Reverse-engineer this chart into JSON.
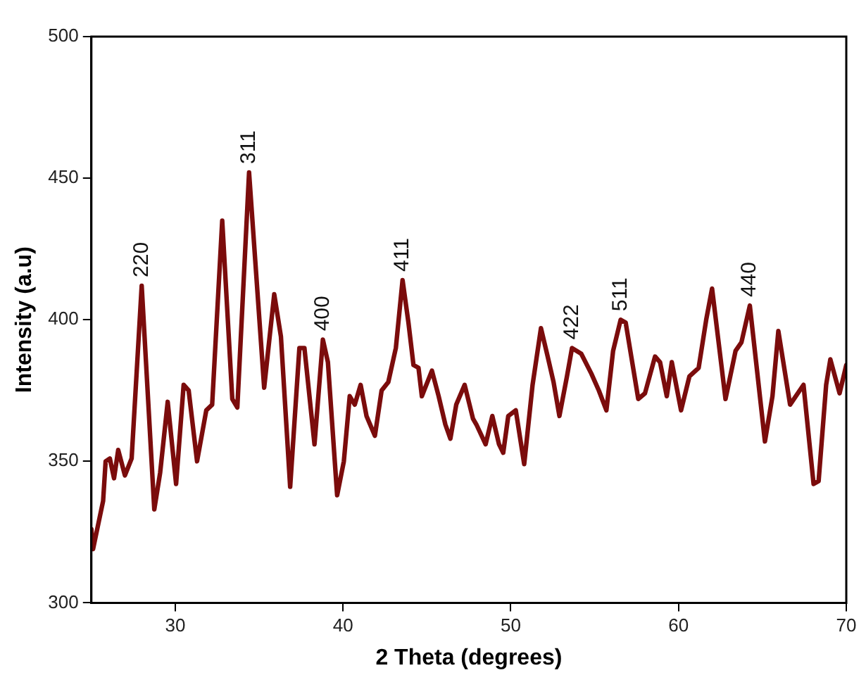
{
  "chart_data": {
    "type": "line",
    "xlabel": "2 Theta (degrees)",
    "ylabel": "Intensity (a.u)",
    "xlim": [
      25,
      70
    ],
    "xticks": [
      30,
      40,
      50,
      60,
      70
    ],
    "ylim": [
      300,
      500
    ],
    "yticks": [
      300,
      350,
      400,
      450,
      500
    ],
    "grid": false,
    "legend": false,
    "marker": "none",
    "line_style": "solid",
    "series": [
      {
        "color": "#7b0c0c",
        "x": [
          25,
          25.1,
          25.7,
          25.85,
          26.1,
          26.35,
          26.6,
          27.0,
          27.4,
          28.0,
          28.75,
          29.1,
          29.55,
          30.05,
          30.5,
          30.8,
          31.3,
          31.85,
          32.2,
          32.8,
          33.4,
          33.7,
          34.4,
          35.3,
          35.9,
          36.3,
          36.85,
          37.4,
          37.7,
          38.3,
          38.8,
          39.1,
          39.65,
          40.05,
          40.4,
          40.7,
          41.05,
          41.4,
          41.9,
          42.3,
          42.7,
          43.15,
          43.55,
          43.9,
          44.2,
          44.5,
          44.7,
          45.3,
          45.7,
          46.1,
          46.4,
          46.75,
          47.25,
          47.75,
          47.95,
          48.5,
          48.9,
          49.3,
          49.55,
          49.85,
          50.3,
          50.8,
          51.3,
          51.8,
          52.2,
          52.55,
          52.9,
          53.35,
          53.65,
          54.2,
          54.8,
          55.25,
          55.7,
          56.1,
          56.55,
          56.85,
          57.6,
          58.0,
          58.6,
          58.9,
          59.3,
          59.6,
          60.15,
          60.65,
          61.2,
          61.65,
          62.0,
          62.8,
          63.4,
          63.75,
          64.25,
          65.15,
          65.6,
          65.95,
          66.65,
          67.45,
          68.05,
          68.35,
          68.8,
          69.05,
          69.6,
          70
        ],
        "values": [
          326,
          319,
          336,
          350,
          351,
          344,
          354,
          345,
          351,
          412,
          333,
          346,
          371,
          342,
          377,
          375,
          350,
          368,
          370,
          435,
          372,
          369,
          452,
          376,
          409,
          394,
          341,
          390,
          390,
          356,
          393,
          385,
          338,
          350,
          373,
          370,
          377,
          366,
          359,
          375,
          378,
          390,
          414,
          399,
          384,
          383,
          373,
          382,
          373,
          363,
          358,
          370,
          377,
          365,
          363,
          356,
          366,
          356,
          353,
          366,
          368,
          349,
          377,
          397,
          387,
          378,
          366,
          380,
          390,
          388,
          381,
          375,
          368,
          389,
          400,
          399,
          372,
          374,
          387,
          385,
          373,
          385,
          368,
          380,
          383,
          400,
          411,
          372,
          389,
          392,
          405,
          357,
          373,
          396,
          370,
          377,
          342,
          343,
          377,
          386,
          374,
          384
        ]
      }
    ],
    "annotations": [
      {
        "text": "220",
        "x": 28.0,
        "y": 412
      },
      {
        "text": "311",
        "x": 34.4,
        "y": 452
      },
      {
        "text": "400",
        "x": 38.8,
        "y": 393
      },
      {
        "text": "411",
        "x": 43.55,
        "y": 414
      },
      {
        "text": "422",
        "x": 53.65,
        "y": 390
      },
      {
        "text": "511",
        "x": 56.55,
        "y": 400
      },
      {
        "text": "440",
        "x": 64.25,
        "y": 405
      }
    ]
  }
}
